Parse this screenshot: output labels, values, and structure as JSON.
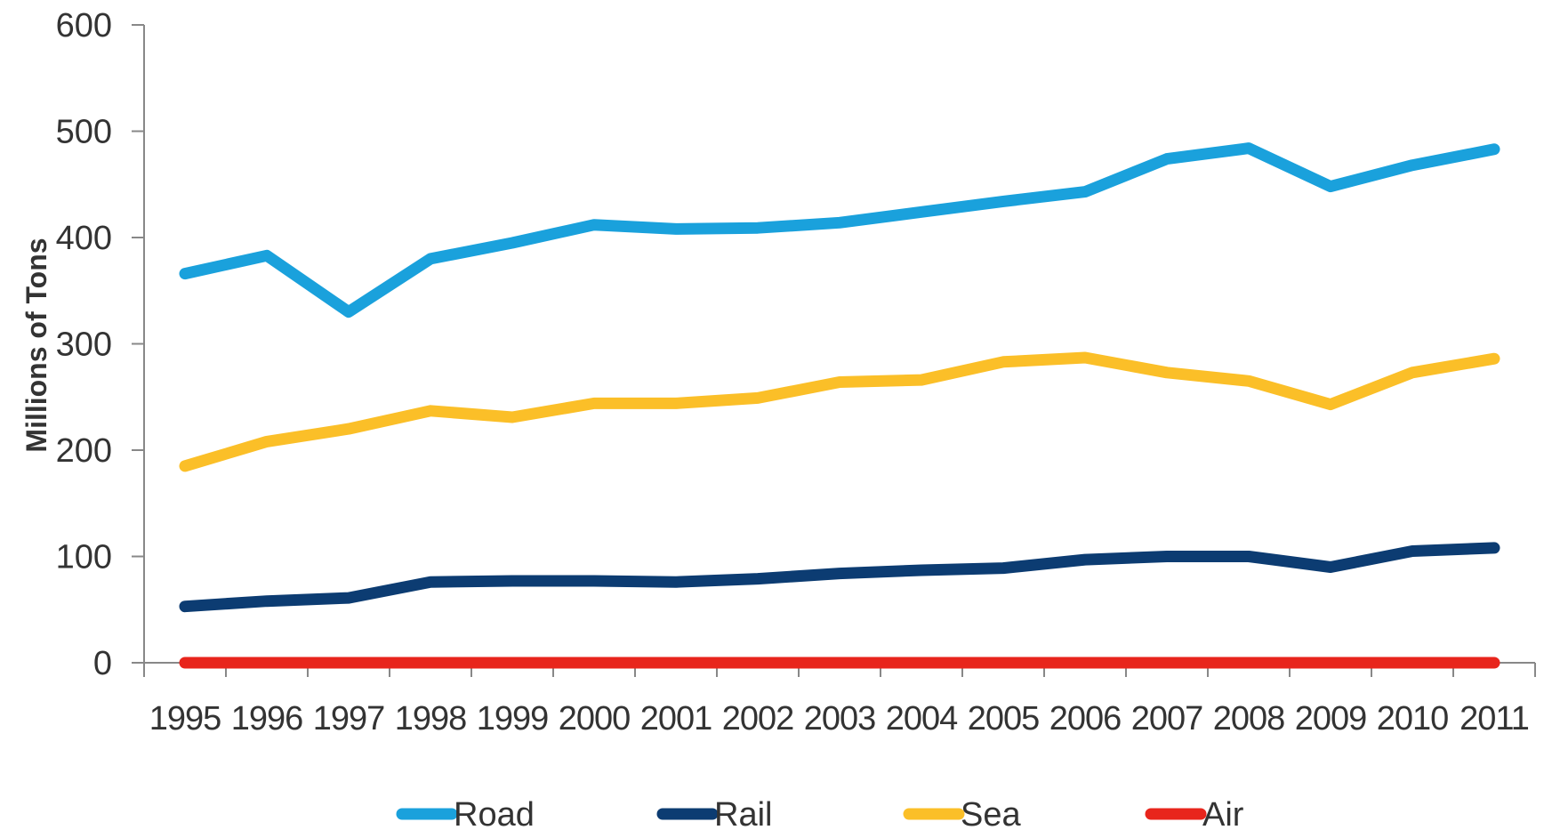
{
  "chart_data": {
    "type": "line",
    "title": "",
    "xlabel": "",
    "ylabel": "Millions of Tons",
    "ylim": [
      0,
      600
    ],
    "yticks": [
      0,
      100,
      200,
      300,
      400,
      500,
      600
    ],
    "categories": [
      "1995",
      "1996",
      "1997",
      "1998",
      "1999",
      "2000",
      "2001",
      "2002",
      "2003",
      "2004",
      "2005",
      "2006",
      "2007",
      "2008",
      "2009",
      "2010",
      "2011"
    ],
    "grid": false,
    "legend_position": "bottom",
    "series": [
      {
        "name": "Road",
        "color": "#1aa1dc",
        "values": [
          366,
          383,
          330,
          380,
          395,
          412,
          408,
          409,
          414,
          424,
          434,
          443,
          474,
          484,
          448,
          468,
          483
        ]
      },
      {
        "name": "Rail",
        "color": "#0c3c72",
        "values": [
          53,
          58,
          61,
          76,
          77,
          77,
          76,
          79,
          84,
          87,
          89,
          97,
          100,
          100,
          90,
          105,
          108
        ]
      },
      {
        "name": "Sea",
        "color": "#fbbf28",
        "values": [
          185,
          208,
          220,
          237,
          231,
          244,
          244,
          249,
          264,
          266,
          283,
          287,
          273,
          265,
          243,
          273,
          286
        ]
      },
      {
        "name": "Air",
        "color": "#e8251c",
        "values": [
          0,
          0,
          0,
          0,
          0,
          0,
          0,
          0,
          0,
          0,
          0,
          0,
          0,
          0,
          0,
          0,
          0
        ]
      }
    ]
  }
}
